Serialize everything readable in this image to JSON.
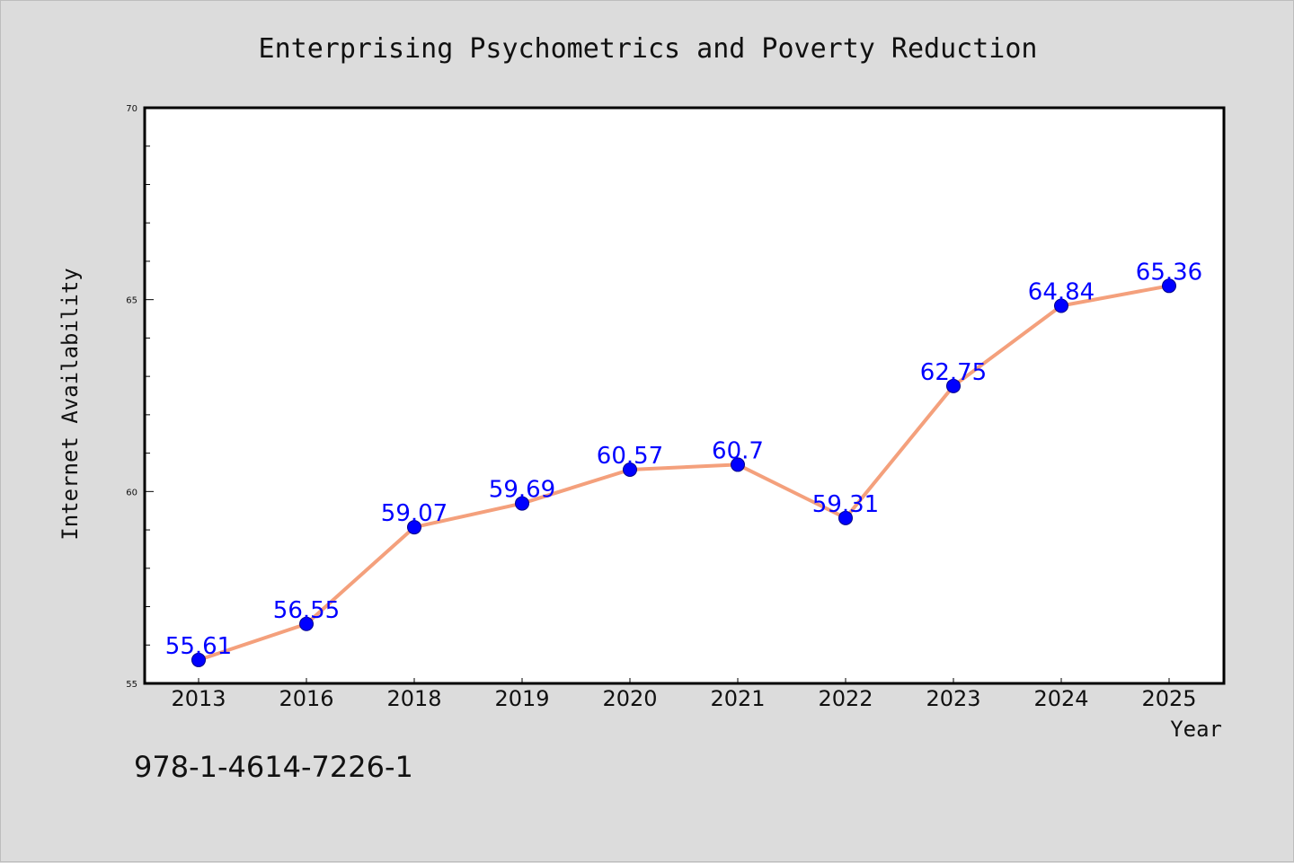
{
  "chart_data": {
    "type": "line",
    "title": "Enterprising Psychometrics and Poverty Reduction",
    "xlabel": "Year",
    "ylabel": "Internet Availability",
    "categories": [
      "2013",
      "2016",
      "2018",
      "2019",
      "2020",
      "2021",
      "2022",
      "2023",
      "2024",
      "2025"
    ],
    "series": [
      {
        "values": [
          55.61,
          56.55,
          59.07,
          59.69,
          60.57,
          60.7,
          59.31,
          62.75,
          64.84,
          65.36
        ],
        "data_labels": [
          "55.61",
          "56.55",
          "59.07",
          "59.69",
          "60.57",
          "60.7",
          "59.31",
          "62.75",
          "64.84",
          "65.36"
        ],
        "line_color": "#f4a07c",
        "marker_color": "#0000ff"
      }
    ],
    "ylim": [
      55,
      70
    ],
    "yticks": [
      "55",
      "60",
      "65",
      "70"
    ],
    "grid": false,
    "legend": "none"
  },
  "footer": {
    "isbn": "978-1-4614-7226-1"
  },
  "colors": {
    "background": "#dcdcdc",
    "plot_background": "#ffffff",
    "line": "#f4a07c",
    "marker": "#0000ff",
    "data_label": "#0000ff"
  }
}
